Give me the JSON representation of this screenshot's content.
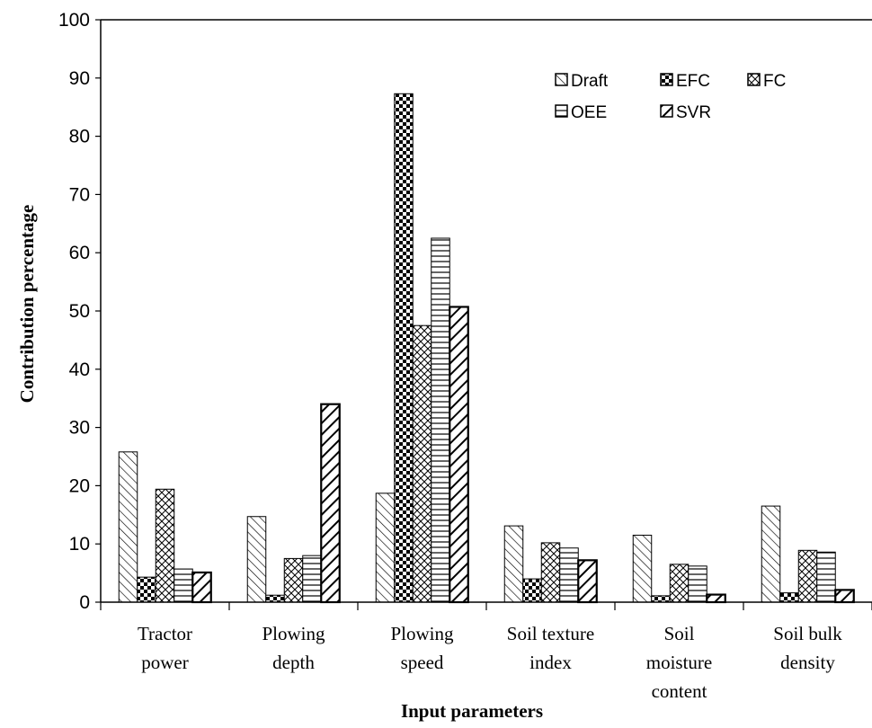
{
  "chart_data": {
    "type": "bar",
    "title": "",
    "xlabel": "Input parameters",
    "ylabel": "Contribution  percentage",
    "ylim": [
      0,
      100
    ],
    "yticks": [
      0,
      10,
      20,
      30,
      40,
      50,
      60,
      70,
      80,
      90,
      100
    ],
    "grid": false,
    "legend_position": "top-right",
    "categories": [
      [
        "Tractor",
        "power"
      ],
      [
        "Plowing",
        "depth"
      ],
      [
        "Plowing",
        "speed"
      ],
      [
        "Soil texture",
        "index"
      ],
      [
        "Soil",
        "moisture",
        "content"
      ],
      [
        "Soil bulk",
        "density"
      ]
    ],
    "series": [
      {
        "name": "Draft",
        "pattern": "diagonal-left",
        "values": [
          25.8,
          14.7,
          18.7,
          13.1,
          11.5,
          16.5
        ]
      },
      {
        "name": "EFC",
        "pattern": "checker",
        "values": [
          4.3,
          1.2,
          87.3,
          4.0,
          1.1,
          1.6
        ]
      },
      {
        "name": "FC",
        "pattern": "crosshatch",
        "values": [
          19.4,
          7.5,
          47.5,
          10.2,
          6.5,
          8.9
        ]
      },
      {
        "name": "OEE",
        "pattern": "horizontal",
        "values": [
          5.7,
          8.0,
          62.5,
          9.3,
          6.2,
          8.6
        ]
      },
      {
        "name": "SVR",
        "pattern": "thick-diagonal",
        "values": [
          5.1,
          34.0,
          50.7,
          7.2,
          1.3,
          2.1
        ]
      }
    ],
    "colors": {
      "stroke": "#000000",
      "background": "#ffffff"
    }
  }
}
